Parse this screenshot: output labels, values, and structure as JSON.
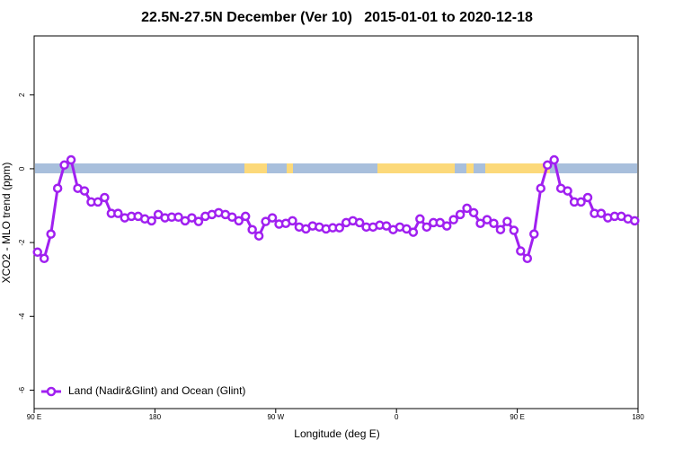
{
  "chart_data": {
    "type": "line",
    "title": "22.5N-27.5N December (Ver 10)   2015-01-01 to 2020-12-18",
    "x_label": "Longitude (deg E)",
    "y_label": "XCO2 - MLO trend (ppm)",
    "x": [
      92.5,
      97.5,
      102.5,
      107.5,
      112.5,
      117.5,
      122.5,
      127.5,
      132.5,
      137.5,
      142.5,
      147.5,
      152.5,
      157.5,
      162.5,
      167.5,
      172.5,
      177.5,
      182.5,
      187.5,
      192.5,
      197.5,
      202.5,
      207.5,
      212.5,
      217.5,
      222.5,
      227.5,
      232.5,
      237.5,
      242.5,
      247.5,
      252.5,
      257.5,
      262.5,
      267.5,
      272.5,
      277.5,
      282.5,
      287.5,
      292.5,
      297.5,
      302.5,
      307.5,
      312.5,
      317.5,
      322.5,
      327.5,
      332.5,
      337.5,
      342.5,
      347.5,
      352.5,
      357.5,
      362.5,
      367.5,
      372.5,
      377.5,
      382.5,
      387.5,
      392.5,
      397.5,
      402.5,
      407.5,
      412.5,
      417.5,
      422.5,
      427.5,
      432.5,
      437.5,
      442.5,
      447.5,
      452.5,
      457.5,
      462.5,
      467.5,
      472.5,
      477.5,
      482.5,
      487.5,
      492.5,
      497.5,
      502.5,
      507.5,
      512.5,
      517.5,
      522.5,
      527.5,
      532.5,
      537.5
    ],
    "series": [
      {
        "name": "Land (Nadir&Glint) and Ocean (Glint)",
        "color": "#a020f0",
        "values": [
          -2.26,
          -2.43,
          -1.77,
          -0.53,
          0.1,
          0.24,
          -0.53,
          -0.6,
          -0.9,
          -0.9,
          -0.78,
          -1.21,
          -1.21,
          -1.33,
          -1.29,
          -1.29,
          -1.36,
          -1.41,
          -1.24,
          -1.33,
          -1.31,
          -1.31,
          -1.41,
          -1.33,
          -1.43,
          -1.29,
          -1.24,
          -1.19,
          -1.24,
          -1.31,
          -1.41,
          -1.29,
          -1.65,
          -1.82,
          -1.43,
          -1.33,
          -1.5,
          -1.48,
          -1.41,
          -1.58,
          -1.63,
          -1.55,
          -1.58,
          -1.63,
          -1.6,
          -1.6,
          -1.46,
          -1.41,
          -1.46,
          -1.58,
          -1.58,
          -1.53,
          -1.55,
          -1.65,
          -1.58,
          -1.63,
          -1.72,
          -1.36,
          -1.58,
          -1.46,
          -1.46,
          -1.55,
          -1.38,
          -1.24,
          -1.07,
          -1.19,
          -1.48,
          -1.38,
          -1.48,
          -1.65,
          -1.43,
          -1.67,
          -2.23,
          -2.43,
          -1.77,
          -0.53,
          0.1,
          0.24,
          -0.53,
          -0.6,
          -0.9,
          -0.9,
          -0.78,
          -1.21,
          -1.21,
          -1.33,
          -1.29,
          -1.29,
          -1.36,
          -1.41
        ]
      }
    ],
    "xlim": [
      90,
      540
    ],
    "xticks": [
      {
        "value": 90,
        "label": "90 E"
      },
      180,
      {
        "value": 270,
        "label": "90 W"
      },
      {
        "value": 360,
        "label": "0"
      },
      {
        "value": 450,
        "label": "90 E"
      },
      {
        "value": 540,
        "label": "180"
      }
    ],
    "ylim": [
      -6.5,
      3.6
    ],
    "yticks": [
      -6,
      -4,
      -2,
      0,
      2
    ],
    "legend": "lower left"
  }
}
